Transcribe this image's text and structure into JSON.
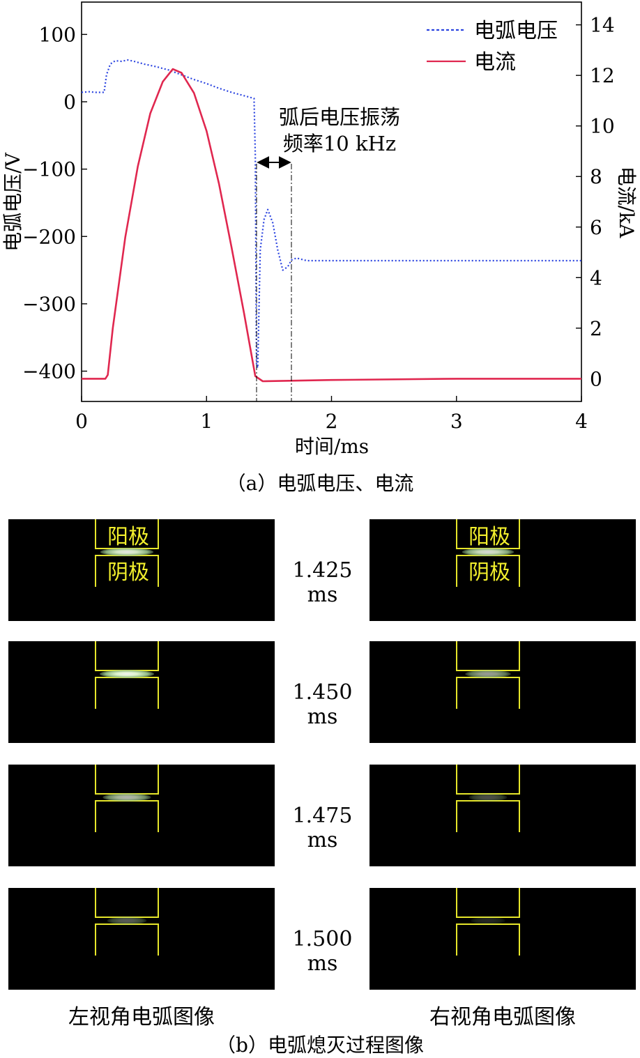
{
  "chart_data": {
    "type": "line",
    "x": {
      "label": "时间/ms",
      "range": [
        0,
        4
      ],
      "ticks": [
        "0",
        "1",
        "2",
        "3",
        "4"
      ]
    },
    "y_left": {
      "label": "电弧电压/V",
      "range": [
        -445,
        148
      ],
      "ticks": [
        "100",
        "0",
        "−100",
        "−200",
        "−300",
        "−400"
      ],
      "tick_values": [
        100,
        0,
        -100,
        -200,
        -300,
        -400
      ]
    },
    "y_right": {
      "label": "电流/kA",
      "range": [
        -0.9,
        14.9
      ],
      "ticks": [
        "0",
        "2",
        "4",
        "6",
        "8",
        "10",
        "12",
        "14"
      ],
      "tick_values": [
        0,
        2,
        4,
        6,
        8,
        10,
        12,
        14
      ]
    },
    "series": [
      {
        "name": "电弧电压",
        "axis": "left",
        "style": "dotted",
        "color": "#2b44e0",
        "points": [
          [
            0,
            14
          ],
          [
            0.07,
            15
          ],
          [
            0.1,
            14
          ],
          [
            0.18,
            14
          ],
          [
            0.2,
            40
          ],
          [
            0.23,
            56
          ],
          [
            0.27,
            61
          ],
          [
            0.32,
            60
          ],
          [
            0.37,
            62
          ],
          [
            0.42,
            60
          ],
          [
            0.5,
            56
          ],
          [
            0.6,
            52
          ],
          [
            0.7,
            47
          ],
          [
            0.8,
            40
          ],
          [
            0.9,
            33
          ],
          [
            1.0,
            27
          ],
          [
            1.1,
            20
          ],
          [
            1.2,
            14
          ],
          [
            1.3,
            9
          ],
          [
            1.38,
            5
          ],
          [
            1.39,
            -80
          ],
          [
            1.4,
            -390
          ],
          [
            1.41,
            -395
          ],
          [
            1.43,
            -220
          ],
          [
            1.46,
            -175
          ],
          [
            1.49,
            -160
          ],
          [
            1.53,
            -180
          ],
          [
            1.57,
            -220
          ],
          [
            1.61,
            -250
          ],
          [
            1.65,
            -245
          ],
          [
            1.68,
            -235
          ],
          [
            1.72,
            -232
          ],
          [
            1.8,
            -236
          ],
          [
            2.0,
            -236
          ],
          [
            2.5,
            -236
          ],
          [
            3.0,
            -236
          ],
          [
            3.5,
            -236
          ],
          [
            4.0,
            -236
          ]
        ]
      },
      {
        "name": "电流",
        "axis": "right",
        "style": "solid",
        "color": "#e0274f",
        "points": [
          [
            0,
            0
          ],
          [
            0.19,
            0
          ],
          [
            0.21,
            0.15
          ],
          [
            0.25,
            2.0
          ],
          [
            0.35,
            5.6
          ],
          [
            0.45,
            8.4
          ],
          [
            0.55,
            10.5
          ],
          [
            0.65,
            11.75
          ],
          [
            0.73,
            12.25
          ],
          [
            0.8,
            12.1
          ],
          [
            0.9,
            11.3
          ],
          [
            1.0,
            9.8
          ],
          [
            1.1,
            7.7
          ],
          [
            1.2,
            5.2
          ],
          [
            1.3,
            2.6
          ],
          [
            1.39,
            0.1
          ],
          [
            1.45,
            -0.1
          ],
          [
            2.0,
            -0.05
          ],
          [
            3.0,
            0
          ],
          [
            4.0,
            0
          ]
        ]
      }
    ],
    "annotations": {
      "line1": "弧后电压振荡",
      "line2": "频率10 kHz",
      "markers_ms": [
        1.4,
        1.68
      ]
    },
    "legend_position": "top-right"
  },
  "figure_a_caption": "（a）电弧电压、电流",
  "electrode_labels": {
    "anode": "阳极",
    "cathode": "阴极"
  },
  "frames": [
    {
      "time": "1.425 ms",
      "left_arc": 0.9,
      "right_arc": 0.85
    },
    {
      "time": "1.450 ms",
      "left_arc": 0.95,
      "right_arc": 0.6
    },
    {
      "time": "1.475 ms",
      "left_arc": 0.7,
      "right_arc": 0.3
    },
    {
      "time": "1.500 ms",
      "left_arc": 0.35,
      "right_arc": 0.15
    }
  ],
  "view_labels": {
    "left": "左视角电弧图像",
    "right": "右视角电弧图像"
  },
  "figure_b_caption": "（b）电弧熄灭过程图像"
}
